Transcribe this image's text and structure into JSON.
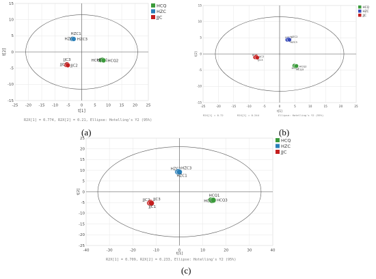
{
  "chart_data": [
    {
      "type": "scatter",
      "caption": "(a)",
      "xlabel": "t[1]",
      "ylabel": "t[2]",
      "xlim": [
        -25,
        25
      ],
      "ylim": [
        -15,
        15
      ],
      "xticks": [
        -25,
        -20,
        -15,
        -10,
        -5,
        0,
        5,
        10,
        15,
        20,
        25
      ],
      "yticks": [
        -15,
        -10,
        -5,
        0,
        5,
        10,
        15
      ],
      "footer": "R2X[1] = 0.774, R2X[2] = 0.21, Ellipse: Hotelling's Y2 (95%)",
      "ellipse": {
        "cx": 0,
        "cy": 0,
        "rx": 21,
        "ry": 11.5
      },
      "legend": {
        "position": "top-right",
        "entries": [
          "HCQ",
          "HZC",
          "JJC"
        ]
      },
      "series": [
        {
          "name": "HCQ",
          "color": "#3a9a3a",
          "points": [
            {
              "x": 7.2,
              "y": -2.5
            },
            {
              "x": 7.8,
              "y": -2.4
            },
            {
              "x": 8.2,
              "y": -2.6
            }
          ],
          "labels": [
            "HCQ3",
            "HCQ1",
            "HCQ2"
          ]
        },
        {
          "name": "HZC",
          "color": "#2a7fb8",
          "points": [
            {
              "x": -3.6,
              "y": 4.0
            },
            {
              "x": -3.3,
              "y": 4.1
            },
            {
              "x": -3.0,
              "y": 4.0
            }
          ],
          "labels": [
            "HZC1",
            "HZC2",
            "HZC3"
          ]
        },
        {
          "name": "JJC",
          "color": "#c41e1e",
          "points": [
            {
              "x": -5.8,
              "y": -4.0
            },
            {
              "x": -5.5,
              "y": -3.8
            },
            {
              "x": -5.2,
              "y": -4.1
            }
          ],
          "labels": [
            "JJC3",
            "JJC1",
            "JJC2"
          ]
        }
      ]
    },
    {
      "type": "scatter",
      "caption": "(b)",
      "xlabel": "t[1]",
      "ylabel": "t[2]",
      "xlim": [
        -25,
        25
      ],
      "ylim": [
        -15,
        15
      ],
      "xticks": [
        -25,
        -20,
        -15,
        -10,
        -5,
        0,
        5,
        10,
        15,
        20,
        25
      ],
      "yticks": [
        -15,
        -10,
        -5,
        0,
        5,
        10,
        15
      ],
      "footer_left": "R2X[1] = 0.72",
      "footer_mid": "R2X[2] = 0.244",
      "footer_right": "Ellipse: Hotelling's Y2 (95%)",
      "ellipse": {
        "cx": 0,
        "cy": 0,
        "rx": 21,
        "ry": 11.5
      },
      "legend": {
        "position": "top-right",
        "entries": [
          "HCQ",
          "HZC",
          "JJC"
        ]
      },
      "series": [
        {
          "name": "HCQ",
          "color": "#3a9a3a",
          "points": [
            {
              "x": 4.8,
              "y": -3.6
            },
            {
              "x": 5.2,
              "y": -3.8
            },
            {
              "x": 5.5,
              "y": -3.7
            }
          ],
          "labels": [
            "HCQ1",
            "HCQ3",
            "HCQ2"
          ]
        },
        {
          "name": "HZC",
          "color": "#3548b8",
          "points": [
            {
              "x": 2.5,
              "y": 4.4
            },
            {
              "x": 2.9,
              "y": 4.6
            },
            {
              "x": 3.2,
              "y": 4.4
            }
          ],
          "labels": [
            "HZC1",
            "HZC2",
            "HZC3"
          ]
        },
        {
          "name": "JJC",
          "color": "#c41e1e",
          "points": [
            {
              "x": -8.0,
              "y": -1.0
            },
            {
              "x": -7.6,
              "y": -0.8
            },
            {
              "x": -7.3,
              "y": -1.1
            }
          ],
          "labels": [
            "JJC1",
            "JJC2",
            "JJC3"
          ]
        }
      ]
    },
    {
      "type": "scatter",
      "caption": "(c)",
      "xlabel": "t[1]",
      "ylabel": "t[2]",
      "xlim": [
        -40,
        40
      ],
      "ylim": [
        -25,
        25
      ],
      "xticks": [
        -40,
        -30,
        -20,
        -10,
        0,
        10,
        20,
        30,
        40
      ],
      "yticks": [
        -25,
        -20,
        -15,
        -10,
        -5,
        0,
        5,
        10,
        15,
        20,
        25
      ],
      "footer": "R2X[1] = 0.709, R2X[2] = 0.233, Ellipse: Hotelling's Y2 (95%)",
      "ellipse": {
        "cx": 0,
        "cy": 0,
        "rx": 35,
        "ry": 21
      },
      "legend": {
        "position": "top-right",
        "entries": [
          "HCQ",
          "HZC",
          "JJC"
        ]
      },
      "series": [
        {
          "name": "HCQ",
          "color": "#3a9a3a",
          "points": [
            {
              "x": 13.5,
              "y": -3.8
            },
            {
              "x": 14.0,
              "y": -4.1
            },
            {
              "x": 14.5,
              "y": -3.9
            }
          ],
          "labels": [
            "HCQ1",
            "HCQ2",
            "HCQ3"
          ]
        },
        {
          "name": "HZC",
          "color": "#2a7fb8",
          "points": [
            {
              "x": -0.8,
              "y": 9.3
            },
            {
              "x": -0.4,
              "y": 9.5
            },
            {
              "x": 0.0,
              "y": 9.2
            }
          ],
          "labels": [
            "HZC2",
            "HZC3",
            "HZC1"
          ]
        },
        {
          "name": "JJC",
          "color": "#c41e1e",
          "points": [
            {
              "x": -12.8,
              "y": -5.2
            },
            {
              "x": -12.4,
              "y": -4.9
            },
            {
              "x": -12.0,
              "y": -5.3
            }
          ],
          "labels": [
            "JJC2",
            "JJC3",
            "JJC1"
          ]
        }
      ]
    }
  ]
}
